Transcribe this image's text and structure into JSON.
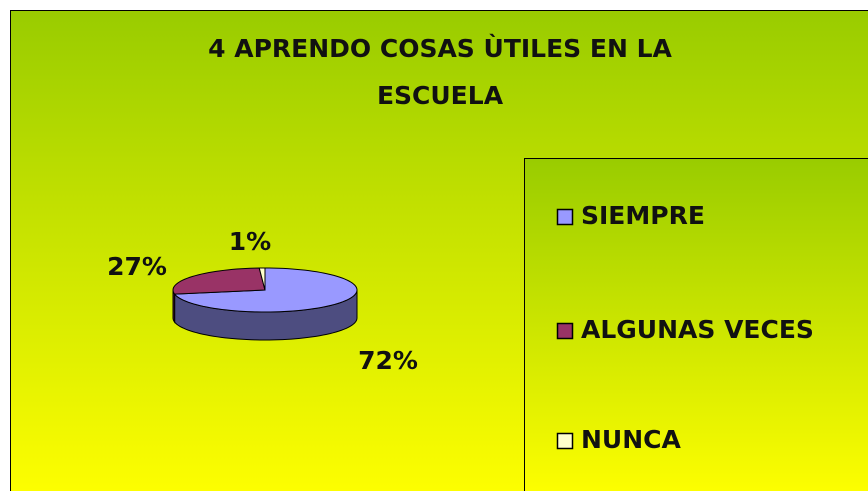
{
  "chart_data": {
    "type": "pie",
    "title": "4 APRENDO COSAS ÙTILES EN LA ESCUELA",
    "categories": [
      "SIEMPRE",
      "ALGUNAS VECES",
      "NUNCA"
    ],
    "values": [
      72,
      27,
      1
    ],
    "value_labels": [
      "72%",
      "27%",
      "1%"
    ],
    "colors": [
      "#9999ff",
      "#993366",
      "#ffffcc"
    ],
    "legend": "right"
  }
}
